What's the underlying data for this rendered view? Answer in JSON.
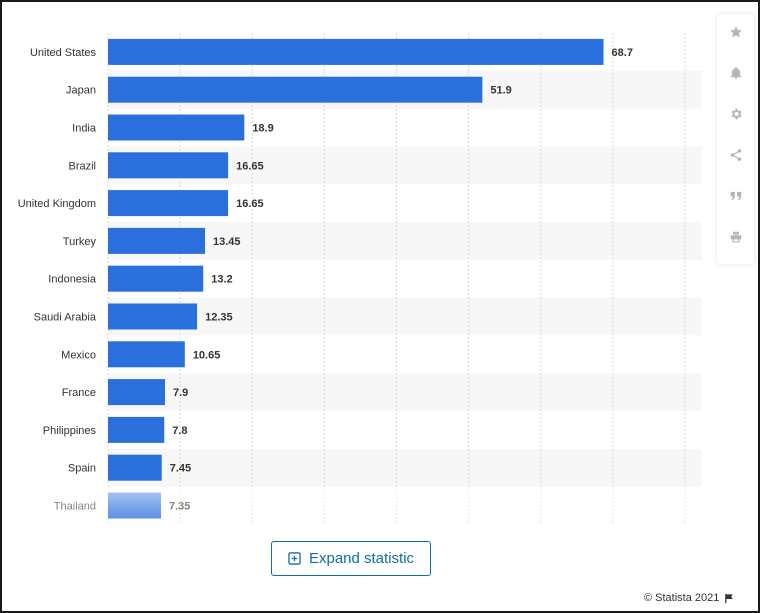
{
  "chart_data": {
    "type": "bar",
    "orientation": "horizontal",
    "categories": [
      "United States",
      "Japan",
      "India",
      "Brazil",
      "United Kingdom",
      "Turkey",
      "Indonesia",
      "Saudi Arabia",
      "Mexico",
      "France",
      "Philippines",
      "Spain",
      "Thailand"
    ],
    "values": [
      68.7,
      51.9,
      18.9,
      16.65,
      16.65,
      13.45,
      13.2,
      12.35,
      10.65,
      7.9,
      7.8,
      7.45,
      7.35
    ],
    "value_labels": [
      "68.7",
      "51.9",
      "18.9",
      "16.65",
      "16.65",
      "13.45",
      "13.2",
      "12.35",
      "10.65",
      "7.9",
      "7.8",
      "7.45",
      "7.35"
    ],
    "xlim": [
      0,
      80
    ],
    "grid": "vertical",
    "bar_color": "#2a6fdb",
    "faded_last_row": true
  },
  "toolbar": {
    "items": [
      {
        "name": "star-icon"
      },
      {
        "name": "bell-icon"
      },
      {
        "name": "gear-icon"
      },
      {
        "name": "share-icon"
      },
      {
        "name": "quote-icon"
      },
      {
        "name": "print-icon"
      }
    ]
  },
  "expand": {
    "label": "Expand statistic",
    "icon": "plus-square-icon",
    "color": "#0f6ea5"
  },
  "footer": {
    "credit": "© Statista 2021",
    "icon": "flag-icon"
  }
}
